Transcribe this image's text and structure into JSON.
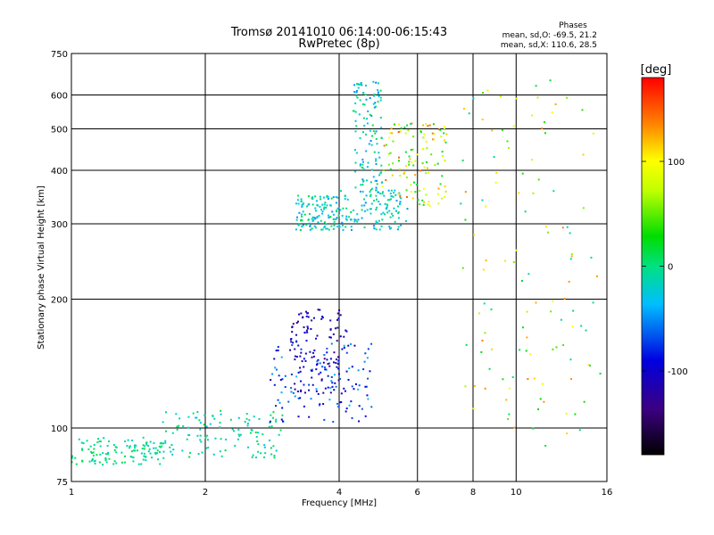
{
  "header": {
    "title_line1": "Tromsø 20141010 06:14:00-06:15:43",
    "title_line2": "RwPretec (8p)",
    "stats_title": "Phases",
    "stats_line1": "mean, sd,O: -69.5, 21.2",
    "stats_line2": "mean, sd,X: 110.6, 28.5"
  },
  "colorbar": {
    "label": "[deg]",
    "range": [
      -180,
      180
    ],
    "ticks": [
      {
        "value": 100,
        "label": "100"
      },
      {
        "value": 0,
        "label": "0"
      },
      {
        "value": -100,
        "label": "-100"
      }
    ]
  },
  "chart_data": {
    "type": "scatter",
    "xlabel": "Frequency [MHz]",
    "ylabel": "Stationary phase Virtual Height [km]",
    "x_scale": "log",
    "y_scale": "log",
    "xlim": [
      1,
      16
    ],
    "ylim": [
      75,
      750
    ],
    "grid": true,
    "x_ticks": [
      1,
      2,
      4,
      6,
      8,
      10,
      16
    ],
    "y_ticks": [
      75,
      100,
      200,
      300,
      400,
      500,
      600,
      750
    ],
    "clusters": [
      {
        "x": [
          1.0,
          1.6
        ],
        "y": [
          82,
          95
        ],
        "phase": -5,
        "spread": 20
      },
      {
        "x": [
          1.6,
          3.0
        ],
        "y": [
          85,
          110
        ],
        "phase": -10,
        "spread": 25
      },
      {
        "x": [
          2.8,
          4.8
        ],
        "y": [
          103,
          160
        ],
        "phase": -70,
        "spread": 35
      },
      {
        "x": [
          3.1,
          4.2
        ],
        "y": [
          120,
          190
        ],
        "phase": -110,
        "spread": 25
      },
      {
        "x": [
          3.2,
          4.0
        ],
        "y": [
          290,
          350
        ],
        "phase": -15,
        "spread": 35
      },
      {
        "x": [
          4.0,
          5.7
        ],
        "y": [
          290,
          360
        ],
        "phase": -20,
        "spread": 30
      },
      {
        "x": [
          4.3,
          5.0
        ],
        "y": [
          350,
          650
        ],
        "phase": -20,
        "spread": 35
      },
      {
        "x": [
          5.0,
          7.0
        ],
        "y": [
          330,
          520
        ],
        "phase": 80,
        "spread": 70
      },
      {
        "x": [
          7.5,
          15.5
        ],
        "y": [
          90,
          660
        ],
        "phase": 60,
        "spread": 80
      }
    ]
  }
}
